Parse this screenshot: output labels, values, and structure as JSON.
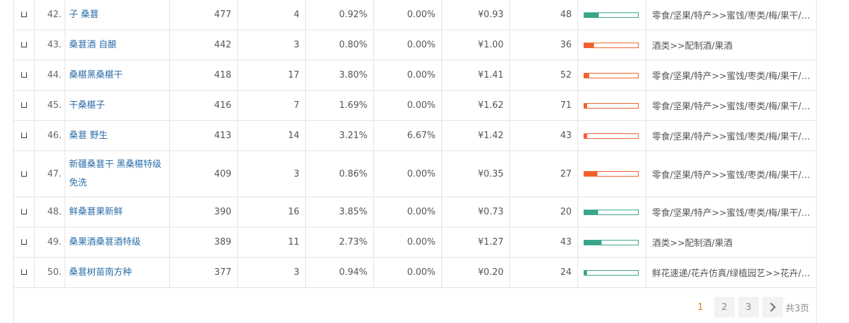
{
  "rows": [
    {
      "idx": "42.",
      "keyword": "子 桑葚",
      "c1": "477",
      "c2": "4",
      "c3": "0.92%",
      "c4": "0.00%",
      "price": "¥0.93",
      "c6": "48",
      "bar_color": "green",
      "bar_fraction": 0.28,
      "category": "零食/坚果/特产>>蜜饯/枣类/梅/果干/果脯"
    },
    {
      "idx": "43.",
      "keyword": "桑葚酒 自酿",
      "c1": "442",
      "c2": "3",
      "c3": "0.80%",
      "c4": "0.00%",
      "price": "¥1.00",
      "c6": "36",
      "bar_color": "orange",
      "bar_fraction": 0.18,
      "category": "酒类>>配制酒/果酒"
    },
    {
      "idx": "44.",
      "keyword": "桑椹黑桑椹干",
      "c1": "418",
      "c2": "17",
      "c3": "3.80%",
      "c4": "0.00%",
      "price": "¥1.41",
      "c6": "52",
      "bar_color": "orange",
      "bar_fraction": 0.09,
      "category": "零食/坚果/特产>>蜜饯/枣类/梅/果干/果脯"
    },
    {
      "idx": "45.",
      "keyword": "干桑椹子",
      "c1": "416",
      "c2": "7",
      "c3": "1.69%",
      "c4": "0.00%",
      "price": "¥1.62",
      "c6": "71",
      "bar_color": "orange",
      "bar_fraction": 0.06,
      "category": "零食/坚果/特产>>蜜饯/枣类/梅/果干/果脯"
    },
    {
      "idx": "46.",
      "keyword": "桑葚 野生",
      "c1": "413",
      "c2": "14",
      "c3": "3.21%",
      "c4": "6.67%",
      "price": "¥1.42",
      "c6": "43",
      "bar_color": "orange",
      "bar_fraction": 0.06,
      "category": "零食/坚果/特产>>蜜饯/枣类/梅/果干/果脯"
    },
    {
      "idx": "47.",
      "keyword": "新疆桑葚干 黑桑椹特级 免洗",
      "c1": "409",
      "c2": "3",
      "c3": "0.86%",
      "c4": "0.00%",
      "price": "¥0.35",
      "c6": "27",
      "bar_color": "orange",
      "bar_fraction": 0.25,
      "category": "零食/坚果/特产>>蜜饯/枣类/梅/果干/果脯"
    },
    {
      "idx": "48.",
      "keyword": "鲜桑葚果新鲜",
      "c1": "390",
      "c2": "16",
      "c3": "3.85%",
      "c4": "0.00%",
      "price": "¥0.73",
      "c6": "20",
      "bar_color": "green",
      "bar_fraction": 0.26,
      "category": "零食/坚果/特产>>蜜饯/枣类/梅/果干/果脯"
    },
    {
      "idx": "49.",
      "keyword": "桑果酒桑葚酒特级",
      "c1": "389",
      "c2": "11",
      "c3": "2.73%",
      "c4": "0.00%",
      "price": "¥1.27",
      "c6": "43",
      "bar_color": "green",
      "bar_fraction": 0.33,
      "category": "酒类>>配制酒/果酒"
    },
    {
      "idx": "50.",
      "keyword": "桑葚树苗南方种",
      "c1": "377",
      "c2": "3",
      "c3": "0.94%",
      "c4": "0.00%",
      "price": "¥0.20",
      "c6": "24",
      "bar_color": "green",
      "bar_fraction": 0.06,
      "category": "鲜花速递/花卉仿真/绿植园艺>>花卉/蔬果/草坪种子"
    }
  ],
  "pager": {
    "current": "1",
    "pages": [
      "2",
      "3"
    ],
    "next_icon": "chevron-right-icon",
    "total": "共3页"
  }
}
